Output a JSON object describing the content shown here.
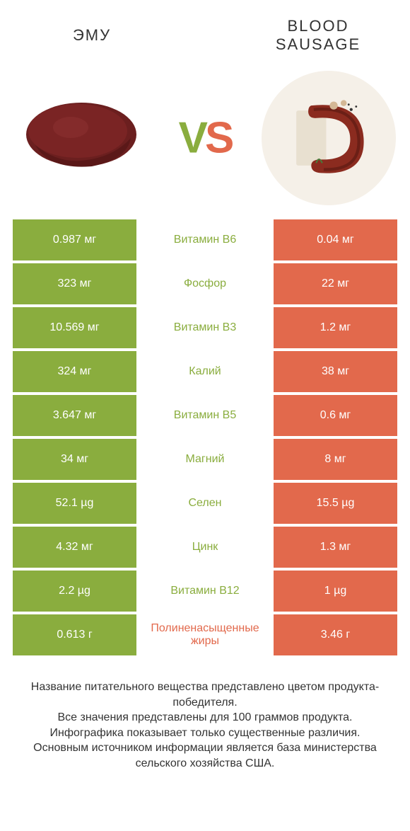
{
  "colors": {
    "green": "#8aad3e",
    "orange": "#e2694c",
    "text": "#333333",
    "white": "#ffffff"
  },
  "header": {
    "left_title": "ЭМУ",
    "right_title": "BLOOD SAUSAGE",
    "vs_v": "V",
    "vs_s": "S"
  },
  "rows": [
    {
      "left": "0.987 мг",
      "mid": "Витамин B6",
      "right": "0.04 мг",
      "winner": "left"
    },
    {
      "left": "323 мг",
      "mid": "Фосфор",
      "right": "22 мг",
      "winner": "left"
    },
    {
      "left": "10.569 мг",
      "mid": "Витамин B3",
      "right": "1.2 мг",
      "winner": "left"
    },
    {
      "left": "324 мг",
      "mid": "Калий",
      "right": "38 мг",
      "winner": "left"
    },
    {
      "left": "3.647 мг",
      "mid": "Витамин B5",
      "right": "0.6 мг",
      "winner": "left"
    },
    {
      "left": "34 мг",
      "mid": "Магний",
      "right": "8 мг",
      "winner": "left"
    },
    {
      "left": "52.1 µg",
      "mid": "Селен",
      "right": "15.5 µg",
      "winner": "left"
    },
    {
      "left": "4.32 мг",
      "mid": "Цинк",
      "right": "1.3 мг",
      "winner": "left"
    },
    {
      "left": "2.2 µg",
      "mid": "Витамин B12",
      "right": "1 µg",
      "winner": "left"
    },
    {
      "left": "0.613 г",
      "mid": "Полиненасыщенные жиры",
      "right": "3.46 г",
      "winner": "right"
    }
  ],
  "footer": {
    "line1": "Название питательного вещества представлено цветом продукта-победителя.",
    "line2": "Все значения представлены для 100 граммов продукта.",
    "line3": "Инфографика показывает только существенные различия.",
    "line4": "Основным источником информации является база министерства сельского хозяйства США."
  }
}
